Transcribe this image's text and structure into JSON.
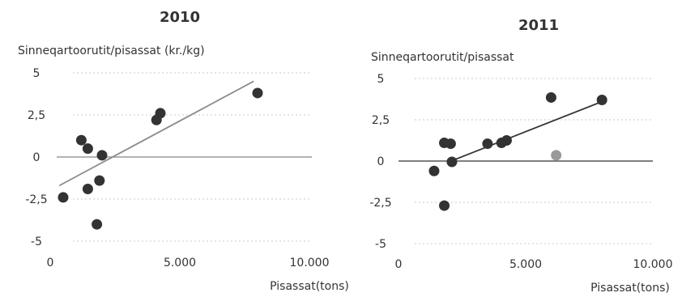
{
  "chart_data": [
    {
      "type": "scatter",
      "title": "2010",
      "ylabel": "Sinneqartoorutit/pisassat (kr./kg)",
      "xlabel": "Pisassat(tons)",
      "xlim": [
        0,
        10000
      ],
      "ylim": [
        -5,
        5
      ],
      "xticks": [
        "0",
        "5.000",
        "10.000"
      ],
      "yticks": [
        "5",
        "2,5",
        "0",
        "-2,5",
        "-5"
      ],
      "grid": true,
      "points": [
        {
          "x": 500,
          "y": -2.4
        },
        {
          "x": 1200,
          "y": 1.0
        },
        {
          "x": 1450,
          "y": 0.5
        },
        {
          "x": 1450,
          "y": -1.9
        },
        {
          "x": 1800,
          "y": -4.0
        },
        {
          "x": 1900,
          "y": -1.4
        },
        {
          "x": 2000,
          "y": 0.1
        },
        {
          "x": 4100,
          "y": 2.2
        },
        {
          "x": 4250,
          "y": 2.6
        },
        {
          "x": 8000,
          "y": 3.8
        }
      ],
      "trendline": {
        "x": [
          350,
          7850
        ],
        "y": [
          -1.7,
          4.5
        ]
      },
      "colors": {
        "points": "#333333",
        "trend": "#8c8c8c",
        "zero": "#9a9a9a",
        "grid": "#c8c8c8"
      }
    },
    {
      "type": "scatter",
      "title": "2011",
      "ylabel": "Sinneqartoorutit/pisassat",
      "xlabel": "Pisassat(tons)",
      "xlim": [
        0,
        10000
      ],
      "ylim": [
        -5,
        5
      ],
      "xticks": [
        "0",
        "5.000",
        "10.000"
      ],
      "yticks": [
        "5",
        "2,5",
        "0",
        "-2,5",
        "-5"
      ],
      "grid": true,
      "points": [
        {
          "x": 1400,
          "y": -0.6
        },
        {
          "x": 1800,
          "y": 1.1
        },
        {
          "x": 2050,
          "y": 1.05
        },
        {
          "x": 1800,
          "y": -2.7
        },
        {
          "x": 2100,
          "y": -0.05
        },
        {
          "x": 3500,
          "y": 1.05
        },
        {
          "x": 4050,
          "y": 1.1
        },
        {
          "x": 4250,
          "y": 1.25
        },
        {
          "x": 6000,
          "y": 3.85
        },
        {
          "x": 6200,
          "y": 0.35,
          "highlight": true
        },
        {
          "x": 8000,
          "y": 3.7
        }
      ],
      "trendline": {
        "x": [
          1900,
          8000
        ],
        "y": [
          -0.1,
          3.6
        ]
      },
      "colors": {
        "points": "#333333",
        "highlight": "#9a9a9a",
        "trend": "#333333",
        "zero": "#555555",
        "grid": "#c8c8c8"
      }
    }
  ]
}
